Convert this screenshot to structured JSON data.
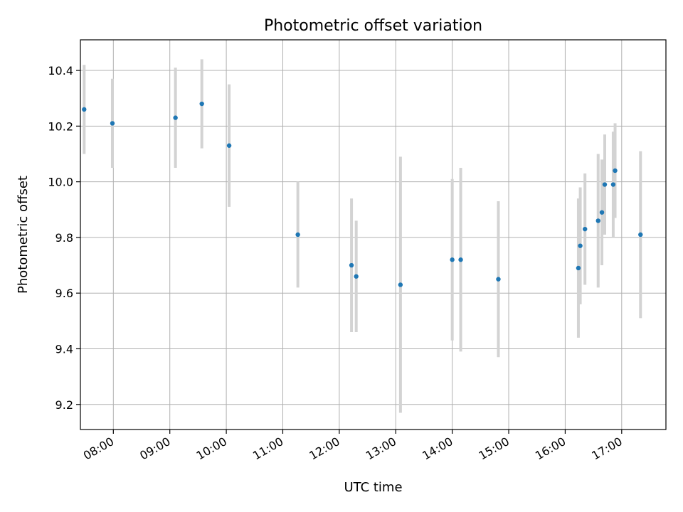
{
  "chart_data": {
    "type": "scatter",
    "title": "Photometric offset variation",
    "xlabel": "UTC time",
    "ylabel": "Photometric offset",
    "x_unit": "hour",
    "xlim": [
      "07:25",
      "17:47"
    ],
    "ylim": [
      9.11,
      10.51
    ],
    "x_ticks": [
      "08:00",
      "09:00",
      "10:00",
      "11:00",
      "12:00",
      "13:00",
      "14:00",
      "15:00",
      "16:00",
      "17:00"
    ],
    "y_ticks": [
      9.2,
      9.4,
      9.6,
      9.8,
      10.0,
      10.2,
      10.4
    ],
    "grid": true,
    "marker_color": "#1f77b4",
    "errorbar_color": "#d3d3d3",
    "points": [
      {
        "time": "07:29",
        "y": 10.26,
        "err": 0.16
      },
      {
        "time": "07:59",
        "y": 10.21,
        "err": 0.16
      },
      {
        "time": "09:06",
        "y": 10.23,
        "err": 0.18
      },
      {
        "time": "09:34",
        "y": 10.28,
        "err": 0.16
      },
      {
        "time": "10:03",
        "y": 10.13,
        "err": 0.22
      },
      {
        "time": "11:16",
        "y": 9.81,
        "err": 0.19
      },
      {
        "time": "12:13",
        "y": 9.7,
        "err": 0.24
      },
      {
        "time": "12:18",
        "y": 9.66,
        "err": 0.2
      },
      {
        "time": "13:05",
        "y": 9.63,
        "err": 0.46
      },
      {
        "time": "14:00",
        "y": 9.72,
        "err": 0.29
      },
      {
        "time": "14:09",
        "y": 9.72,
        "err": 0.33
      },
      {
        "time": "14:49",
        "y": 9.65,
        "err": 0.28
      },
      {
        "time": "16:14",
        "y": 9.69,
        "err": 0.25
      },
      {
        "time": "16:16",
        "y": 9.77,
        "err": 0.21
      },
      {
        "time": "16:21",
        "y": 9.83,
        "err": 0.2
      },
      {
        "time": "16:35",
        "y": 9.86,
        "err": 0.24
      },
      {
        "time": "16:39",
        "y": 9.89,
        "err": 0.19
      },
      {
        "time": "16:42",
        "y": 9.99,
        "err": 0.18
      },
      {
        "time": "16:51",
        "y": 9.99,
        "err": 0.19
      },
      {
        "time": "16:53",
        "y": 10.04,
        "err": 0.17
      },
      {
        "time": "17:20",
        "y": 9.81,
        "err": 0.3
      }
    ]
  }
}
